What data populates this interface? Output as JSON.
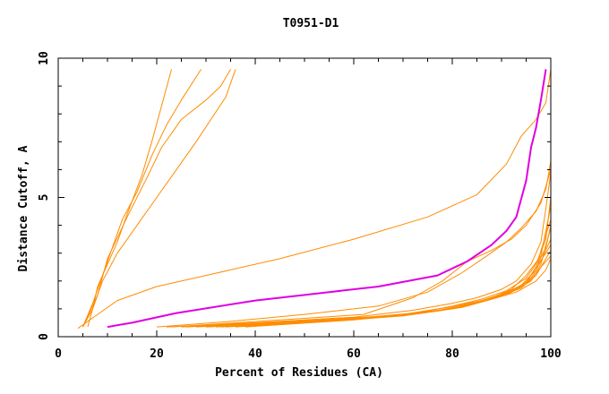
{
  "chart_data": {
    "type": "line",
    "title": "T0951-D1",
    "xlabel": "Percent of Residues (CA)",
    "ylabel": "Distance Cutoff, A",
    "xlim": [
      0,
      100
    ],
    "ylim": [
      0,
      10
    ],
    "x_ticks": [
      "0",
      "20",
      "40",
      "60",
      "80",
      "100"
    ],
    "y_ticks": [
      "0",
      "5",
      "10"
    ],
    "grid": false,
    "legend": "none",
    "colors": {
      "highlight": "#e000e0",
      "others": "#ff8c00",
      "axis": "#000000"
    },
    "highlight_series": {
      "points": [
        [
          10,
          0.35
        ],
        [
          15,
          0.5
        ],
        [
          24,
          0.85
        ],
        [
          40,
          1.3
        ],
        [
          55,
          1.6
        ],
        [
          65,
          1.8
        ],
        [
          77,
          2.2
        ],
        [
          83,
          2.7
        ],
        [
          88,
          3.3
        ],
        [
          91,
          3.8
        ],
        [
          93,
          4.3
        ],
        [
          95,
          5.6
        ],
        [
          96,
          6.8
        ],
        [
          97,
          7.5
        ],
        [
          98,
          8.5
        ],
        [
          99,
          9.6
        ]
      ]
    },
    "series": [
      {
        "points": [
          [
            6,
            0.35
          ],
          [
            7,
            1.0
          ],
          [
            8,
            1.8
          ],
          [
            10,
            2.6
          ],
          [
            12,
            3.4
          ],
          [
            14,
            4.4
          ],
          [
            17,
            5.8
          ],
          [
            19,
            7.0
          ],
          [
            21,
            8.3
          ],
          [
            23,
            9.6
          ]
        ]
      },
      {
        "points": [
          [
            5,
            0.35
          ],
          [
            7,
            1.2
          ],
          [
            9,
            2.2
          ],
          [
            11,
            3.2
          ],
          [
            13,
            4.2
          ],
          [
            16,
            5.2
          ],
          [
            19,
            6.5
          ],
          [
            22,
            7.6
          ],
          [
            25,
            8.5
          ],
          [
            29,
            9.6
          ]
        ]
      },
      {
        "points": [
          [
            5,
            0.35
          ],
          [
            7,
            1.0
          ],
          [
            9,
            2.0
          ],
          [
            12,
            3.0
          ],
          [
            16,
            4.0
          ],
          [
            20,
            5.0
          ],
          [
            24,
            6.0
          ],
          [
            28,
            7.0
          ],
          [
            31,
            7.8
          ],
          [
            34,
            8.6
          ],
          [
            36,
            9.6
          ]
        ]
      },
      {
        "points": [
          [
            5,
            0.35
          ],
          [
            8,
            1.5
          ],
          [
            10,
            2.8
          ],
          [
            14,
            4.3
          ],
          [
            18,
            5.7
          ],
          [
            21,
            6.8
          ],
          [
            25,
            7.8
          ],
          [
            30,
            8.5
          ],
          [
            33,
            9.0
          ],
          [
            35,
            9.6
          ]
        ]
      },
      {
        "points": [
          [
            4,
            0.3
          ],
          [
            8,
            0.8
          ],
          [
            12,
            1.3
          ],
          [
            20,
            1.8
          ],
          [
            30,
            2.2
          ],
          [
            45,
            2.8
          ],
          [
            60,
            3.5
          ],
          [
            75,
            4.3
          ],
          [
            85,
            5.1
          ],
          [
            91,
            6.2
          ],
          [
            94,
            7.2
          ],
          [
            97,
            7.8
          ],
          [
            99,
            8.4
          ],
          [
            100,
            9.6
          ]
        ]
      },
      {
        "points": [
          [
            20,
            0.35
          ],
          [
            35,
            0.55
          ],
          [
            50,
            0.8
          ],
          [
            65,
            1.1
          ],
          [
            75,
            1.6
          ],
          [
            82,
            2.3
          ],
          [
            87,
            2.9
          ],
          [
            91,
            3.4
          ],
          [
            94,
            3.9
          ],
          [
            97,
            4.5
          ],
          [
            99,
            5.3
          ],
          [
            100,
            6.3
          ]
        ]
      },
      {
        "points": [
          [
            23,
            0.35
          ],
          [
            45,
            0.6
          ],
          [
            62,
            0.8
          ],
          [
            72,
            1.4
          ],
          [
            78,
            2.0
          ],
          [
            83,
            2.7
          ],
          [
            88,
            3.1
          ],
          [
            92,
            3.5
          ],
          [
            95,
            4.0
          ],
          [
            98,
            4.8
          ],
          [
            99,
            5.4
          ],
          [
            100,
            6.0
          ]
        ]
      },
      {
        "points": [
          [
            22,
            0.35
          ],
          [
            40,
            0.5
          ],
          [
            60,
            0.7
          ],
          [
            72,
            0.95
          ],
          [
            80,
            1.2
          ],
          [
            85,
            1.4
          ],
          [
            90,
            1.7
          ],
          [
            93,
            2.0
          ],
          [
            96,
            2.6
          ],
          [
            98,
            3.4
          ],
          [
            99,
            4.6
          ],
          [
            100,
            5.9
          ]
        ]
      },
      {
        "points": [
          [
            25,
            0.35
          ],
          [
            42,
            0.5
          ],
          [
            60,
            0.65
          ],
          [
            73,
            0.85
          ],
          [
            80,
            1.1
          ],
          [
            86,
            1.35
          ],
          [
            91,
            1.65
          ],
          [
            95,
            2.1
          ],
          [
            97,
            2.6
          ],
          [
            99,
            3.5
          ],
          [
            100,
            5.0
          ]
        ]
      },
      {
        "points": [
          [
            28,
            0.35
          ],
          [
            45,
            0.5
          ],
          [
            62,
            0.65
          ],
          [
            74,
            0.85
          ],
          [
            82,
            1.1
          ],
          [
            88,
            1.4
          ],
          [
            92,
            1.7
          ],
          [
            95,
            2.2
          ],
          [
            98,
            2.9
          ],
          [
            99,
            3.8
          ],
          [
            100,
            4.7
          ]
        ]
      },
      {
        "points": [
          [
            30,
            0.35
          ],
          [
            50,
            0.55
          ],
          [
            65,
            0.7
          ],
          [
            76,
            0.9
          ],
          [
            84,
            1.2
          ],
          [
            90,
            1.5
          ],
          [
            94,
            1.85
          ],
          [
            97,
            2.4
          ],
          [
            98,
            3.1
          ],
          [
            100,
            4.2
          ]
        ]
      },
      {
        "points": [
          [
            32,
            0.35
          ],
          [
            52,
            0.55
          ],
          [
            68,
            0.75
          ],
          [
            78,
            0.95
          ],
          [
            86,
            1.25
          ],
          [
            91,
            1.55
          ],
          [
            95,
            1.95
          ],
          [
            97,
            2.5
          ],
          [
            99,
            3.2
          ],
          [
            100,
            4.0
          ]
        ]
      },
      {
        "points": [
          [
            34,
            0.35
          ],
          [
            55,
            0.55
          ],
          [
            70,
            0.75
          ],
          [
            80,
            1.0
          ],
          [
            87,
            1.3
          ],
          [
            92,
            1.6
          ],
          [
            96,
            2.0
          ],
          [
            98,
            2.6
          ],
          [
            99,
            3.3
          ],
          [
            100,
            3.9
          ]
        ]
      },
      {
        "points": [
          [
            36,
            0.35
          ],
          [
            58,
            0.6
          ],
          [
            72,
            0.8
          ],
          [
            82,
            1.05
          ],
          [
            88,
            1.35
          ],
          [
            93,
            1.7
          ],
          [
            96,
            2.1
          ],
          [
            98,
            2.7
          ],
          [
            100,
            3.5
          ]
        ]
      },
      {
        "points": [
          [
            26,
            0.35
          ],
          [
            48,
            0.55
          ],
          [
            64,
            0.72
          ],
          [
            77,
            0.92
          ],
          [
            85,
            1.2
          ],
          [
            91,
            1.5
          ],
          [
            95,
            1.9
          ],
          [
            97,
            2.5
          ],
          [
            99,
            3.0
          ],
          [
            100,
            3.3
          ]
        ]
      },
      {
        "points": [
          [
            38,
            0.35
          ],
          [
            60,
            0.6
          ],
          [
            74,
            0.85
          ],
          [
            83,
            1.1
          ],
          [
            89,
            1.4
          ],
          [
            94,
            1.75
          ],
          [
            97,
            2.2
          ],
          [
            99,
            2.8
          ],
          [
            100,
            3.1
          ]
        ]
      },
      {
        "points": [
          [
            30,
            0.35
          ],
          [
            56,
            0.6
          ],
          [
            70,
            0.8
          ],
          [
            79,
            1.05
          ],
          [
            86,
            1.3
          ],
          [
            92,
            1.65
          ],
          [
            96,
            2.05
          ],
          [
            98,
            2.5
          ],
          [
            100,
            2.9
          ]
        ]
      },
      {
        "points": [
          [
            33,
            0.35
          ],
          [
            50,
            0.55
          ],
          [
            67,
            0.75
          ],
          [
            80,
            1.0
          ],
          [
            87,
            1.3
          ],
          [
            93,
            1.6
          ],
          [
            97,
            2.0
          ],
          [
            99,
            2.4
          ],
          [
            100,
            2.8
          ]
        ]
      }
    ]
  }
}
